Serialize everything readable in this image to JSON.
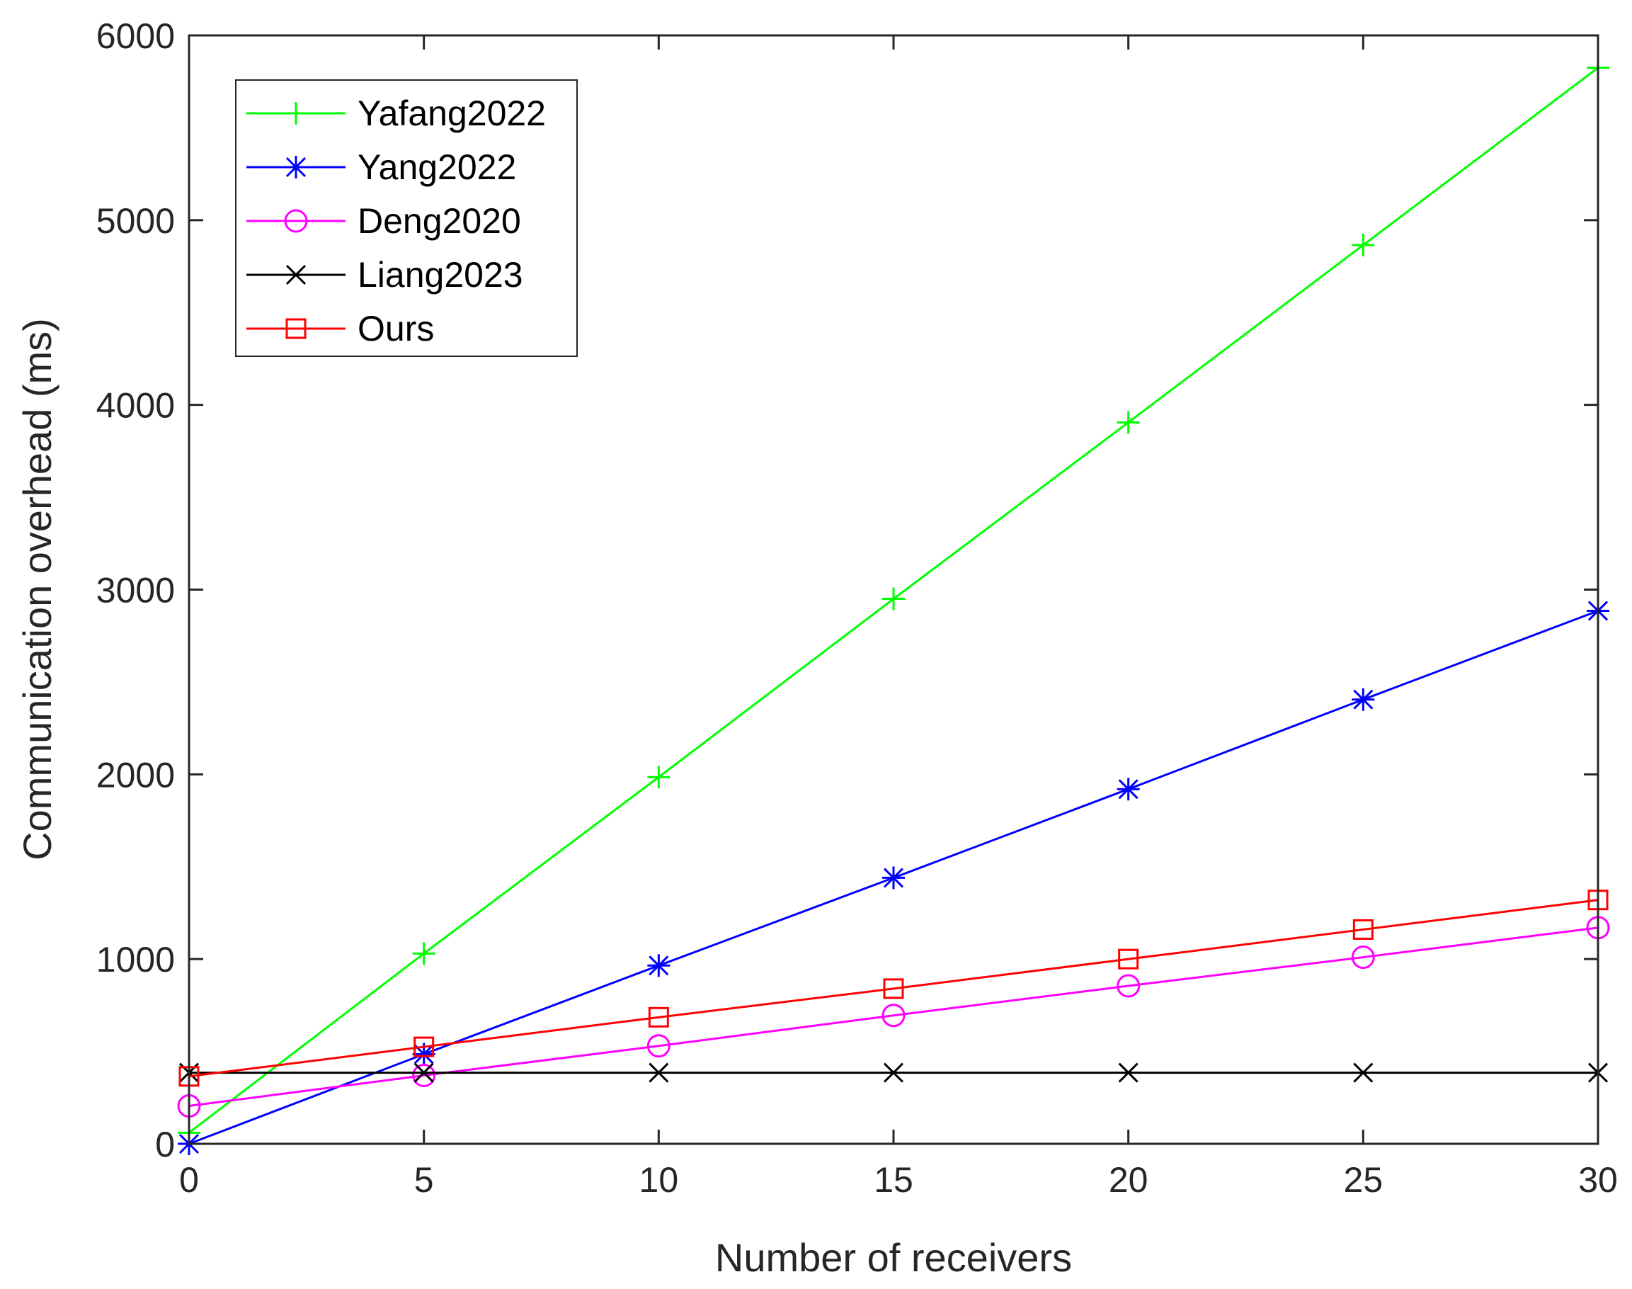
{
  "chart_data": {
    "type": "line",
    "title": "",
    "xlabel": "Number of receivers",
    "ylabel": "Communication overhead (ms)",
    "xlim": [
      0,
      30
    ],
    "ylim": [
      0,
      6000
    ],
    "xticks": [
      0,
      5,
      10,
      15,
      20,
      25,
      30
    ],
    "yticks": [
      0,
      1000,
      2000,
      3000,
      4000,
      5000,
      6000
    ],
    "grid": false,
    "legend_position": "top-left",
    "x": [
      0,
      5,
      10,
      15,
      20,
      25,
      30
    ],
    "series": [
      {
        "name": "Yafang2022",
        "color": "#00ff00",
        "marker": "plus",
        "values": [
          60,
          1030,
          1985,
          2950,
          3905,
          4865,
          5825
        ]
      },
      {
        "name": "Yang2022",
        "color": "#0000ff",
        "marker": "asterisk",
        "values": [
          0,
          485,
          965,
          1440,
          1920,
          2405,
          2885
        ]
      },
      {
        "name": "Deng2020",
        "color": "#ff00ff",
        "marker": "circle",
        "values": [
          205,
          370,
          530,
          695,
          855,
          1010,
          1170
        ]
      },
      {
        "name": "Liang2023",
        "color": "#000000",
        "marker": "x",
        "values": [
          385,
          385,
          385,
          385,
          385,
          385,
          385
        ]
      },
      {
        "name": "Ours",
        "color": "#ff0000",
        "marker": "square",
        "values": [
          365,
          525,
          685,
          840,
          1000,
          1160,
          1320
        ]
      }
    ]
  }
}
